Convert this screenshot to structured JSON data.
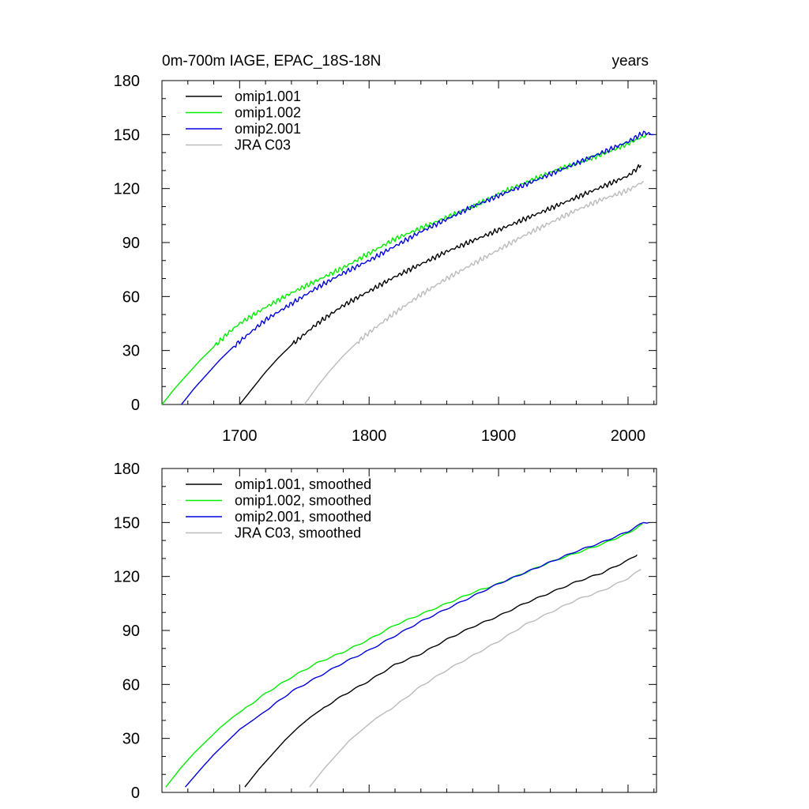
{
  "chart_data": [
    {
      "type": "line",
      "title": "0m-700m IAGE, EPAC_18S-18N",
      "units": "years",
      "xlim": [
        1640,
        2022
      ],
      "ylim": [
        0,
        180
      ],
      "xticks": [
        1700,
        1800,
        1900,
        2000
      ],
      "yticks": [
        0,
        30,
        60,
        90,
        120,
        150,
        180
      ],
      "grid": false,
      "legend_position": "top-left",
      "series": [
        {
          "name": "omip1.001",
          "color": "#000000",
          "x": [
            1700,
            1710,
            1720,
            1730,
            1740,
            1750,
            1760,
            1770,
            1780,
            1790,
            1800,
            1820,
            1840,
            1860,
            1880,
            1900,
            1920,
            1940,
            1960,
            1980,
            2000,
            2010
          ],
          "y": [
            0,
            9,
            18,
            26,
            33,
            39,
            45,
            50,
            55,
            59,
            63,
            71,
            78,
            85,
            91,
            97,
            103,
            109,
            115,
            121,
            127,
            133
          ]
        },
        {
          "name": "omip1.002",
          "color": "#00ee00",
          "x": [
            1640,
            1650,
            1660,
            1670,
            1680,
            1690,
            1700,
            1720,
            1740,
            1760,
            1780,
            1800,
            1820,
            1840,
            1860,
            1880,
            1900,
            1920,
            1940,
            1960,
            1980,
            2000,
            2015
          ],
          "y": [
            0,
            9,
            17,
            25,
            32,
            39,
            45,
            54,
            62,
            69,
            76,
            84,
            92,
            98,
            104,
            110,
            117,
            123,
            129,
            134,
            139,
            145,
            150
          ]
        },
        {
          "name": "omip2.001",
          "color": "#0000dd",
          "x": [
            1655,
            1665,
            1675,
            1685,
            1695,
            1705,
            1720,
            1740,
            1760,
            1780,
            1800,
            1820,
            1840,
            1860,
            1880,
            1900,
            1920,
            1940,
            1960,
            1980,
            2000,
            2012,
            2020
          ],
          "y": [
            0,
            9,
            17,
            25,
            32,
            38,
            47,
            56,
            65,
            73,
            80,
            88,
            96,
            103,
            110,
            116,
            122,
            128,
            134,
            140,
            146,
            151,
            150
          ]
        },
        {
          "name": "JRA C03",
          "color": "#bbbbbb",
          "x": [
            1750,
            1760,
            1770,
            1780,
            1790,
            1800,
            1820,
            1840,
            1860,
            1880,
            1900,
            1920,
            1940,
            1960,
            1980,
            2000,
            2012
          ],
          "y": [
            0,
            10,
            19,
            27,
            34,
            40,
            51,
            61,
            70,
            78,
            86,
            94,
            101,
            108,
            114,
            119,
            124
          ]
        }
      ]
    },
    {
      "type": "line",
      "xlim": [
        1640,
        2022
      ],
      "ylim": [
        0,
        180
      ],
      "xticks": [
        1700,
        1800,
        1900,
        2000
      ],
      "yticks": [
        0,
        30,
        60,
        90,
        120,
        150,
        180
      ],
      "grid": false,
      "legend_position": "top-left",
      "series": [
        {
          "name": "omip1.001, smoothed",
          "color": "#000000",
          "x": [
            1704,
            1715,
            1725,
            1735,
            1745,
            1755,
            1765,
            1780,
            1800,
            1820,
            1840,
            1860,
            1880,
            1900,
            1920,
            1940,
            1960,
            1980,
            2000,
            2007
          ],
          "y": [
            3,
            13,
            21,
            29,
            36,
            42,
            47,
            54,
            62,
            71,
            77,
            85,
            92,
            98,
            105,
            111,
            117,
            122,
            129,
            132
          ]
        },
        {
          "name": "omip1.002, smoothed",
          "color": "#00ee00",
          "x": [
            1643,
            1655,
            1665,
            1675,
            1685,
            1695,
            1705,
            1720,
            1740,
            1760,
            1780,
            1800,
            1820,
            1840,
            1860,
            1880,
            1900,
            1920,
            1940,
            1960,
            1980,
            2000,
            2011
          ],
          "y": [
            3,
            14,
            22,
            29,
            36,
            42,
            47,
            55,
            64,
            72,
            78,
            85,
            93,
            99,
            105,
            111,
            116,
            122,
            128,
            133,
            138,
            144,
            149
          ]
        },
        {
          "name": "omip2.001, smoothed",
          "color": "#0000dd",
          "x": [
            1658,
            1670,
            1680,
            1690,
            1700,
            1710,
            1725,
            1740,
            1760,
            1780,
            1800,
            1820,
            1840,
            1860,
            1880,
            1900,
            1920,
            1940,
            1960,
            1980,
            2000,
            2012,
            2016
          ],
          "y": [
            3,
            13,
            21,
            28,
            35,
            40,
            48,
            56,
            64,
            72,
            79,
            87,
            95,
            102,
            109,
            116,
            122,
            128,
            134,
            139,
            145,
            150,
            150
          ]
        },
        {
          "name": "JRA C03, smoothed",
          "color": "#bbbbbb",
          "x": [
            1754,
            1765,
            1775,
            1785,
            1795,
            1805,
            1820,
            1840,
            1860,
            1880,
            1900,
            1920,
            1940,
            1960,
            1980,
            2000,
            2010
          ],
          "y": [
            3,
            13,
            21,
            29,
            35,
            41,
            48,
            59,
            68,
            76,
            84,
            93,
            100,
            107,
            112,
            119,
            124
          ]
        }
      ]
    }
  ]
}
